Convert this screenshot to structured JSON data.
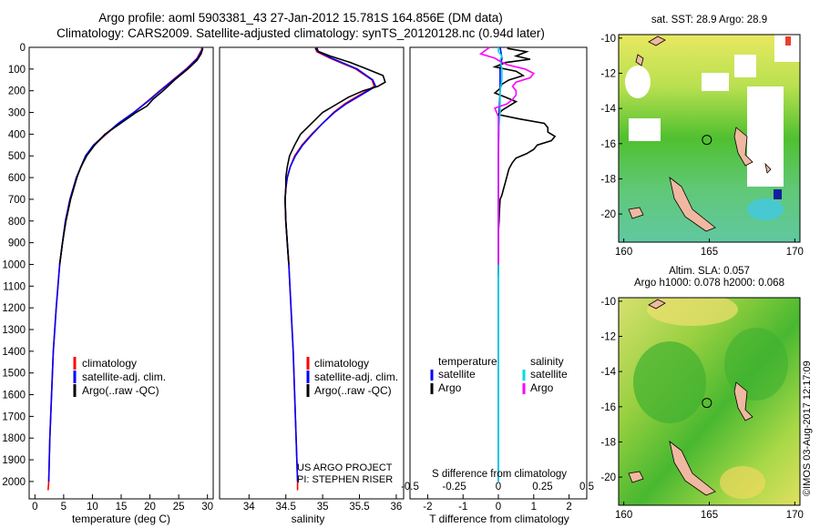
{
  "header": {
    "title_line1": "Argo profile: aoml 5903381_43 27-Jan-2012 15.781S 164.856E (DM data)",
    "title_line2": "Climatology: CARS2009. Satellite-adjusted climatology: synTS_20120128.nc (0.94d later)"
  },
  "colors": {
    "climatology": "#ff0000",
    "satellite": "#0000ff",
    "argo": "#000000",
    "sat_salinity": "#00dddd",
    "argo_salinity": "#ff00ff"
  },
  "depth_axis": {
    "ticks": [
      0,
      100,
      200,
      300,
      400,
      500,
      600,
      700,
      800,
      900,
      1000,
      1100,
      1200,
      1300,
      1400,
      1500,
      1600,
      1700,
      1800,
      1900,
      2000
    ],
    "range": [
      0,
      2080
    ]
  },
  "chart_data": [
    {
      "type": "line",
      "name": "temperature",
      "xlabel": "temperature (deg C)",
      "xlim": [
        -1,
        31
      ],
      "xticks": [
        0,
        5,
        10,
        15,
        20,
        25,
        30
      ],
      "ylim": [
        0,
        2080
      ],
      "legend": [
        "climatology",
        "satellite-adj. clim.",
        "Argo(..raw -QC)"
      ],
      "legend_position": "lower-left",
      "series": [
        {
          "name": "climatology",
          "key": "climatology",
          "depth": [
            0,
            10,
            50,
            100,
            150,
            200,
            250,
            300,
            350,
            400,
            450,
            500,
            600,
            700,
            800,
            900,
            1000,
            1200,
            1400,
            1600,
            1800,
            2000,
            2040
          ],
          "values": [
            29,
            29,
            28.2,
            26.3,
            24,
            21.7,
            19.5,
            17.2,
            14.6,
            12.4,
            10.3,
            8.9,
            7.2,
            6.1,
            5.3,
            4.8,
            4.3,
            3.7,
            3.2,
            2.9,
            2.6,
            2.4,
            2.3
          ]
        },
        {
          "name": "satellite-adj. clim.",
          "key": "satellite",
          "depth": [
            0,
            10,
            50,
            100,
            150,
            200,
            250,
            300,
            350,
            400,
            450,
            500,
            600,
            700,
            800,
            900,
            1000,
            1200,
            1400,
            1600,
            1800,
            2000
          ],
          "values": [
            29.1,
            29.1,
            28.3,
            26.4,
            24.1,
            21.8,
            19.6,
            17.2,
            14.5,
            12.3,
            10.2,
            8.8,
            7.2,
            6.1,
            5.3,
            4.8,
            4.3,
            3.7,
            3.2,
            2.9,
            2.6,
            2.4
          ]
        },
        {
          "name": "Argo(..raw -QC)",
          "key": "argo",
          "depth": [
            5,
            30,
            60,
            100,
            150,
            200,
            240,
            270,
            300,
            350,
            400,
            450,
            500,
            550,
            600,
            700,
            800,
            900,
            1000
          ],
          "values": [
            29.2,
            28.9,
            28.2,
            26.6,
            24.3,
            22.3,
            20.5,
            19.5,
            17.6,
            14.9,
            12.2,
            10.4,
            9.0,
            8.0,
            7.3,
            6.2,
            5.4,
            4.8,
            4.3
          ]
        }
      ]
    },
    {
      "type": "line",
      "name": "salinity",
      "xlabel": "salinity",
      "xlim": [
        33.6,
        36.1
      ],
      "xticks": [
        34,
        34.5,
        35,
        35.5,
        36
      ],
      "ylim": [
        0,
        2080
      ],
      "legend": [
        "climatology",
        "satellite-adj. clim.",
        "Argo(..raw -QC)"
      ],
      "legend_position": "lower-right",
      "series": [
        {
          "name": "climatology",
          "key": "climatology",
          "depth": [
            0,
            20,
            50,
            100,
            150,
            180,
            220,
            260,
            300,
            350,
            400,
            450,
            500,
            550,
            600,
            650,
            700,
            800,
            900,
            1000,
            1200,
            1400,
            1600,
            1800,
            2000,
            2040
          ],
          "values": [
            34.9,
            34.92,
            35.1,
            35.45,
            35.67,
            35.7,
            35.5,
            35.3,
            35.15,
            35.0,
            34.85,
            34.72,
            34.62,
            34.56,
            34.52,
            34.5,
            34.49,
            34.5,
            34.52,
            34.54,
            34.57,
            34.6,
            34.62,
            34.64,
            34.66,
            34.66
          ]
        },
        {
          "name": "satellite-adj. clim.",
          "key": "satellite",
          "depth": [
            0,
            20,
            50,
            100,
            150,
            180,
            220,
            260,
            300,
            350,
            400,
            450,
            500,
            550,
            600,
            650,
            700,
            800,
            900,
            1000,
            1200,
            1400,
            1600,
            1800,
            2000
          ],
          "values": [
            34.92,
            34.94,
            35.12,
            35.47,
            35.68,
            35.72,
            35.52,
            35.32,
            35.16,
            35.0,
            34.86,
            34.73,
            34.63,
            34.56,
            34.52,
            34.5,
            34.49,
            34.5,
            34.52,
            34.54,
            34.57,
            34.6,
            34.62,
            34.64,
            34.66
          ]
        },
        {
          "name": "Argo(..raw -QC)",
          "key": "argo",
          "depth": [
            5,
            20,
            40,
            70,
            100,
            130,
            160,
            180,
            200,
            230,
            260,
            300,
            350,
            400,
            450,
            500,
            550,
            600,
            650,
            700,
            800,
            900,
            1000
          ],
          "values": [
            34.9,
            34.95,
            35.1,
            35.38,
            35.6,
            35.82,
            35.85,
            35.75,
            35.55,
            35.35,
            35.2,
            35.0,
            34.85,
            34.7,
            34.62,
            34.55,
            34.52,
            34.5,
            34.5,
            34.49,
            34.5,
            34.52,
            34.54
          ]
        }
      ]
    },
    {
      "type": "line",
      "name": "difference",
      "xlabel": "T difference from climatology",
      "x2label": "S difference from climatology",
      "xlim": [
        -2.5,
        2.5
      ],
      "xticks": [
        -2,
        -1,
        0,
        1,
        2
      ],
      "x2ticks_values": [
        -0.5,
        -0.25,
        0,
        0.25,
        0.5
      ],
      "x2ticks_labels": [
        "-0.5",
        "-0.25",
        "0",
        "0.25",
        "0.5"
      ],
      "ylim": [
        0,
        2080
      ],
      "legend_temperature_title": "temperature",
      "legend_salinity_title": "salinity",
      "legend_temperature": [
        "satellite",
        "Argo"
      ],
      "legend_salinity": [
        "satellite",
        "Argo"
      ],
      "series": [
        {
          "name": "T satellite",
          "key": "satellite",
          "depth": [
            0,
            50,
            100,
            200,
            300,
            500,
            700,
            1000,
            1500,
            2000
          ],
          "values": [
            0.05,
            0.1,
            0.05,
            0.05,
            0.02,
            0.0,
            0.0,
            0.0,
            0.0,
            0.0
          ]
        },
        {
          "name": "T Argo",
          "key": "argo",
          "depth": [
            5,
            20,
            40,
            55,
            70,
            90,
            110,
            130,
            150,
            170,
            190,
            210,
            230,
            250,
            270,
            290,
            310,
            330,
            350,
            370,
            390,
            410,
            430,
            450,
            470,
            490,
            510,
            530,
            560,
            590,
            620,
            650,
            680,
            700,
            750,
            800,
            850,
            900,
            950,
            1000,
            1050
          ],
          "values": [
            0.25,
            0.8,
            0.5,
            0.9,
            0.2,
            -0.1,
            0.5,
            0.7,
            0.3,
            0.1,
            0.05,
            -0.1,
            0.2,
            0.5,
            0.3,
            0.1,
            0.0,
            0.6,
            1.3,
            1.4,
            1.4,
            1.6,
            1.5,
            1.1,
            1.0,
            0.8,
            0.5,
            0.4,
            0.3,
            0.25,
            0.2,
            0.15,
            0.1,
            0.05,
            0.03,
            0.02,
            0.0,
            0.0,
            0.0,
            0.0,
            0.0
          ]
        },
        {
          "name": "S satellite",
          "key": "sat_salinity",
          "depth": [
            0,
            20,
            40,
            60,
            100,
            150,
            200,
            300,
            400,
            500,
            700,
            1000,
            1500,
            2000
          ],
          "values": [
            0.0,
            0.0,
            0.02,
            0.01,
            0.02,
            0.02,
            0.01,
            0.01,
            0.0,
            0.0,
            0.0,
            0.0,
            0.0,
            0.0
          ]
        },
        {
          "name": "S Argo",
          "key": "argo_salinity",
          "depth": [
            0,
            30,
            50,
            60,
            80,
            100,
            120,
            140,
            160,
            180,
            200,
            220,
            240,
            260,
            280,
            300,
            320,
            350,
            400,
            500,
            600,
            700,
            800,
            1000
          ],
          "values": [
            -0.05,
            -0.1,
            -0.02,
            0.0,
            0.05,
            0.15,
            0.2,
            0.18,
            0.1,
            0.08,
            0.1,
            0.1,
            0.08,
            0.05,
            -0.02,
            -0.01,
            0.0,
            0.0,
            0.0,
            0.0,
            0.0,
            0.0,
            0.0,
            0.0
          ]
        }
      ]
    },
    {
      "type": "heatmap",
      "name": "sst_map",
      "title": "sat. SST: 28.9 Argo: 28.9",
      "xlim": [
        159.7,
        170.3
      ],
      "ylim": [
        -21.6,
        -9.8
      ],
      "xticks": [
        160,
        165,
        170
      ],
      "yticks": [
        -10,
        -12,
        -14,
        -16,
        -18,
        -20
      ],
      "profile_location": {
        "lon": 164.856,
        "lat": -15.781
      }
    },
    {
      "type": "heatmap",
      "name": "sla_map",
      "title_line1": "Altim. SLA: 0.057",
      "title_line2": "Argo h1000: 0.078 h2000: 0.068",
      "xlim": [
        159.7,
        170.3
      ],
      "ylim": [
        -21.6,
        -9.8
      ],
      "xticks": [
        160,
        165,
        170
      ],
      "yticks": [
        -10,
        -12,
        -14,
        -16,
        -18,
        -20
      ],
      "profile_location": {
        "lon": 164.856,
        "lat": -15.781
      }
    }
  ],
  "project": {
    "line1": "US ARGO PROJECT",
    "line2": "PI: STEPHEN RISER"
  },
  "stamp": "©IMOS 03-Aug-2017 12:17:09"
}
